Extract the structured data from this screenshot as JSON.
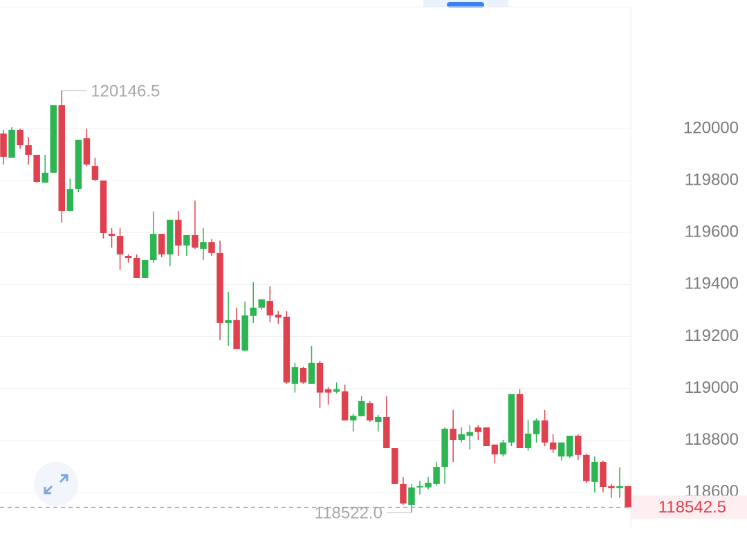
{
  "chart_data": {
    "type": "candlestick",
    "up_color": "#2eb553",
    "down_color": "#e0414f",
    "open": [
      119981,
      119888,
      119995,
      119936,
      119899,
      119792,
      119830,
      120090,
      119683,
      119768,
      119963,
      119856,
      119800,
      119595,
      119587,
      119510,
      119502,
      119425,
      119494,
      119595,
      119516,
      119649,
      119550,
      119590,
      119537,
      119563,
      119521,
      119252,
      119263,
      119146,
      119279,
      119311,
      119337,
      119284,
      119276,
      119018,
      119079,
      119018,
      119098,
      118997,
      118987,
      118989,
      118877,
      118893,
      118943,
      118871,
      118890,
      118770,
      118632,
      118552,
      118619,
      118619,
      118632,
      118698,
      118845,
      118802,
      118818,
      118850,
      118850,
      118784,
      118746,
      118792,
      118978,
      118770,
      118824,
      118877,
      118792,
      118738,
      118738,
      118818,
      118744,
      118640,
      118717,
      118624,
      118616,
      118624
    ],
    "high": [
      119995,
      120005,
      120000,
      119968,
      119899,
      119899,
      120090,
      120146.5,
      119808,
      119957,
      120000,
      119888,
      119800,
      119617,
      119617,
      119516,
      119516,
      119494,
      119681,
      119595,
      119649,
      119683,
      119590,
      119723,
      119617,
      119574,
      119569,
      119372,
      119311,
      119335,
      119409,
      119343,
      119393,
      119297,
      119297,
      119098,
      119084,
      119164,
      119106,
      119005,
      119023,
      119015,
      118903,
      118970,
      118951,
      118898,
      118970,
      118770,
      118659,
      118632,
      118645,
      118659,
      118717,
      118850,
      118917,
      118850,
      118858,
      118858,
      118850,
      118784,
      118802,
      118978,
      118997,
      118879,
      118885,
      118917,
      118824,
      118792,
      118818,
      118824,
      118749,
      118738,
      118722,
      118632,
      118696,
      118624
    ],
    "low": [
      119862,
      119888,
      119923,
      119862,
      119792,
      119792,
      119830,
      119638,
      119683,
      119755,
      119856,
      119798,
      119577,
      119542,
      119457,
      119484,
      119425,
      119425,
      119484,
      119505,
      119470,
      119510,
      119510,
      119537,
      119494,
      119510,
      119186,
      119164,
      119151,
      119143,
      119252,
      119303,
      119255,
      119249,
      119018,
      118984,
      119018,
      119018,
      118925,
      118938,
      118981,
      118877,
      118834,
      118893,
      118871,
      118834,
      118770,
      118632,
      118552,
      118522,
      118592,
      118611,
      118627,
      118632,
      118717,
      118792,
      118765,
      118802,
      118778,
      118712,
      118738,
      118778,
      118770,
      118760,
      118792,
      118778,
      118752,
      118722,
      118733,
      118725,
      118637,
      118600,
      118600,
      118579,
      118579,
      118542.5
    ],
    "close": [
      119891,
      119995,
      119936,
      119899,
      119795,
      119830,
      120090,
      119683,
      119768,
      119957,
      119862,
      119803,
      119598,
      119587,
      119516,
      119502,
      119425,
      119494,
      119595,
      119516,
      119649,
      119550,
      119590,
      119542,
      119563,
      119521,
      119252,
      119263,
      119151,
      119281,
      119311,
      119343,
      119281,
      119273,
      119023,
      119082,
      119023,
      119098,
      118984,
      118984,
      118997,
      118877,
      118895,
      118951,
      118877,
      118890,
      118770,
      118632,
      118557,
      118619,
      118624,
      118637,
      118698,
      118845,
      118802,
      118824,
      118832,
      118832,
      118778,
      118746,
      118792,
      118978,
      118770,
      118826,
      118877,
      118792,
      118765,
      118792,
      118818,
      118744,
      118643,
      118717,
      118621,
      118616,
      118624,
      118542.5
    ],
    "max_label": "120146.5",
    "min_label": "118522.0",
    "last_label": "118542.5",
    "ylim": [
      118432,
      120495
    ],
    "yticks": [
      118600,
      118800,
      119000,
      119200,
      119400,
      119600,
      119800,
      120000
    ],
    "grid": true
  }
}
